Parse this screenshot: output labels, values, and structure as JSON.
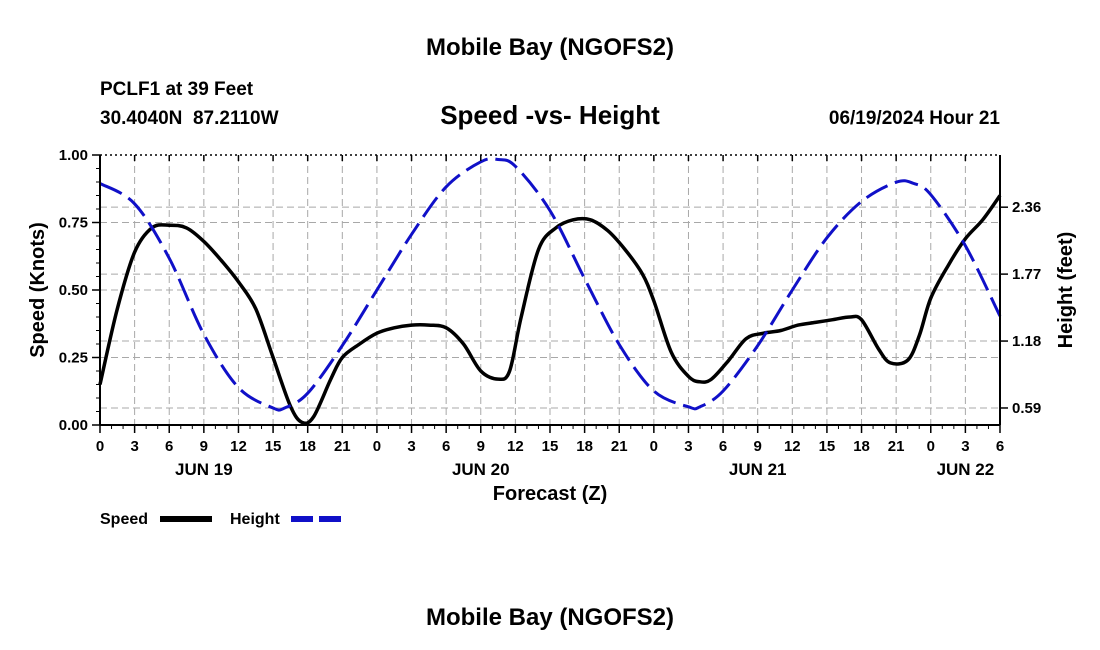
{
  "page": {
    "title": "Mobile Bay (NGOFS2)",
    "footer_title": "Mobile Bay (NGOFS2)"
  },
  "header": {
    "station": "PCLF1 at 39 Feet",
    "coords": "30.4040N  87.2110W",
    "datetime": "06/19/2024 Hour 21"
  },
  "chart_data": {
    "type": "line",
    "title": "Speed -vs- Height",
    "xlabel": "Forecast (Z)",
    "ylabel_left": "Speed (Knots)",
    "ylabel_right": "Height (feet)",
    "x_unit": "forecast hour from 06/19 00Z",
    "xlim": [
      0,
      78
    ],
    "ylim_left": [
      0,
      1
    ],
    "ylim_right": [
      0.44,
      2.82
    ],
    "x_ticks": [
      0,
      3,
      6,
      9,
      12,
      15,
      18,
      21,
      24,
      27,
      30,
      33,
      36,
      39,
      42,
      45,
      48,
      51,
      54,
      57,
      60,
      63,
      66,
      69,
      72,
      75,
      78
    ],
    "x_tick_labels": [
      "0",
      "3",
      "6",
      "9",
      "12",
      "15",
      "18",
      "21",
      "0",
      "3",
      "6",
      "9",
      "12",
      "15",
      "18",
      "21",
      "0",
      "3",
      "6",
      "9",
      "12",
      "15",
      "18",
      "21",
      "0",
      "3",
      "6"
    ],
    "day_labels": [
      {
        "x": 9,
        "label": "JUN 19"
      },
      {
        "x": 33,
        "label": "JUN 20"
      },
      {
        "x": 57,
        "label": "JUN 21"
      },
      {
        "x": 75,
        "label": "JUN 22"
      }
    ],
    "y_ticks_left": [
      0,
      0.25,
      0.5,
      0.75,
      1.0
    ],
    "y_tick_labels_left": [
      "0.00",
      "0.25",
      "0.50",
      "0.75",
      "1.00"
    ],
    "y_ticks_right": [
      0.59,
      1.18,
      1.77,
      2.36
    ],
    "y_tick_labels_right": [
      "0.59",
      "1.18",
      "1.77",
      "2.36"
    ],
    "grid": true,
    "legend_position": "bottom-left",
    "series": [
      {
        "name": "Speed",
        "axis": "left",
        "color": "#000000",
        "style": "solid",
        "x": [
          0,
          1.5,
          3,
          4.5,
          6,
          7.5,
          9,
          10.5,
          12,
          13.5,
          15,
          16.5,
          17.5,
          18.5,
          20,
          21,
          22.5,
          24,
          25.5,
          27,
          28.5,
          30,
          31.5,
          33,
          34.5,
          35.5,
          36.5,
          38,
          39.5,
          41,
          42.5,
          44,
          45.5,
          47,
          48,
          49.5,
          51,
          52,
          53,
          54.5,
          56,
          57.5,
          59,
          60.5,
          62,
          63.5,
          65,
          66,
          67.5,
          68.5,
          70,
          71,
          72,
          73.5,
          75,
          76.5,
          78
        ],
        "values": [
          0.15,
          0.43,
          0.64,
          0.73,
          0.74,
          0.73,
          0.68,
          0.61,
          0.53,
          0.43,
          0.25,
          0.07,
          0.01,
          0.03,
          0.17,
          0.25,
          0.3,
          0.34,
          0.36,
          0.37,
          0.37,
          0.36,
          0.3,
          0.2,
          0.17,
          0.2,
          0.4,
          0.65,
          0.73,
          0.76,
          0.76,
          0.72,
          0.65,
          0.56,
          0.46,
          0.27,
          0.18,
          0.16,
          0.17,
          0.24,
          0.32,
          0.34,
          0.35,
          0.37,
          0.38,
          0.39,
          0.4,
          0.39,
          0.28,
          0.23,
          0.24,
          0.33,
          0.47,
          0.59,
          0.69,
          0.76,
          0.85
        ]
      },
      {
        "name": "Height",
        "axis": "right",
        "color": "#1010c8",
        "style": "dashed",
        "x": [
          0,
          3,
          6,
          9,
          12,
          15,
          16,
          18,
          21,
          24,
          27,
          30,
          33,
          34.5,
          36,
          39,
          42,
          45,
          48,
          51,
          52,
          54,
          57,
          60,
          63,
          66,
          69,
          70.5,
          72,
          75,
          78
        ],
        "values": [
          2.57,
          2.39,
          1.91,
          1.24,
          0.77,
          0.59,
          0.59,
          0.72,
          1.14,
          1.63,
          2.12,
          2.54,
          2.76,
          2.78,
          2.72,
          2.33,
          1.73,
          1.15,
          0.74,
          0.6,
          0.6,
          0.74,
          1.14,
          1.63,
          2.09,
          2.41,
          2.58,
          2.57,
          2.47,
          2.02,
          1.4
        ]
      }
    ]
  },
  "legend": {
    "items": [
      {
        "label": "Speed",
        "color": "#000000",
        "style": "solid"
      },
      {
        "label": "Height",
        "color": "#1010c8",
        "style": "dashed"
      }
    ]
  }
}
